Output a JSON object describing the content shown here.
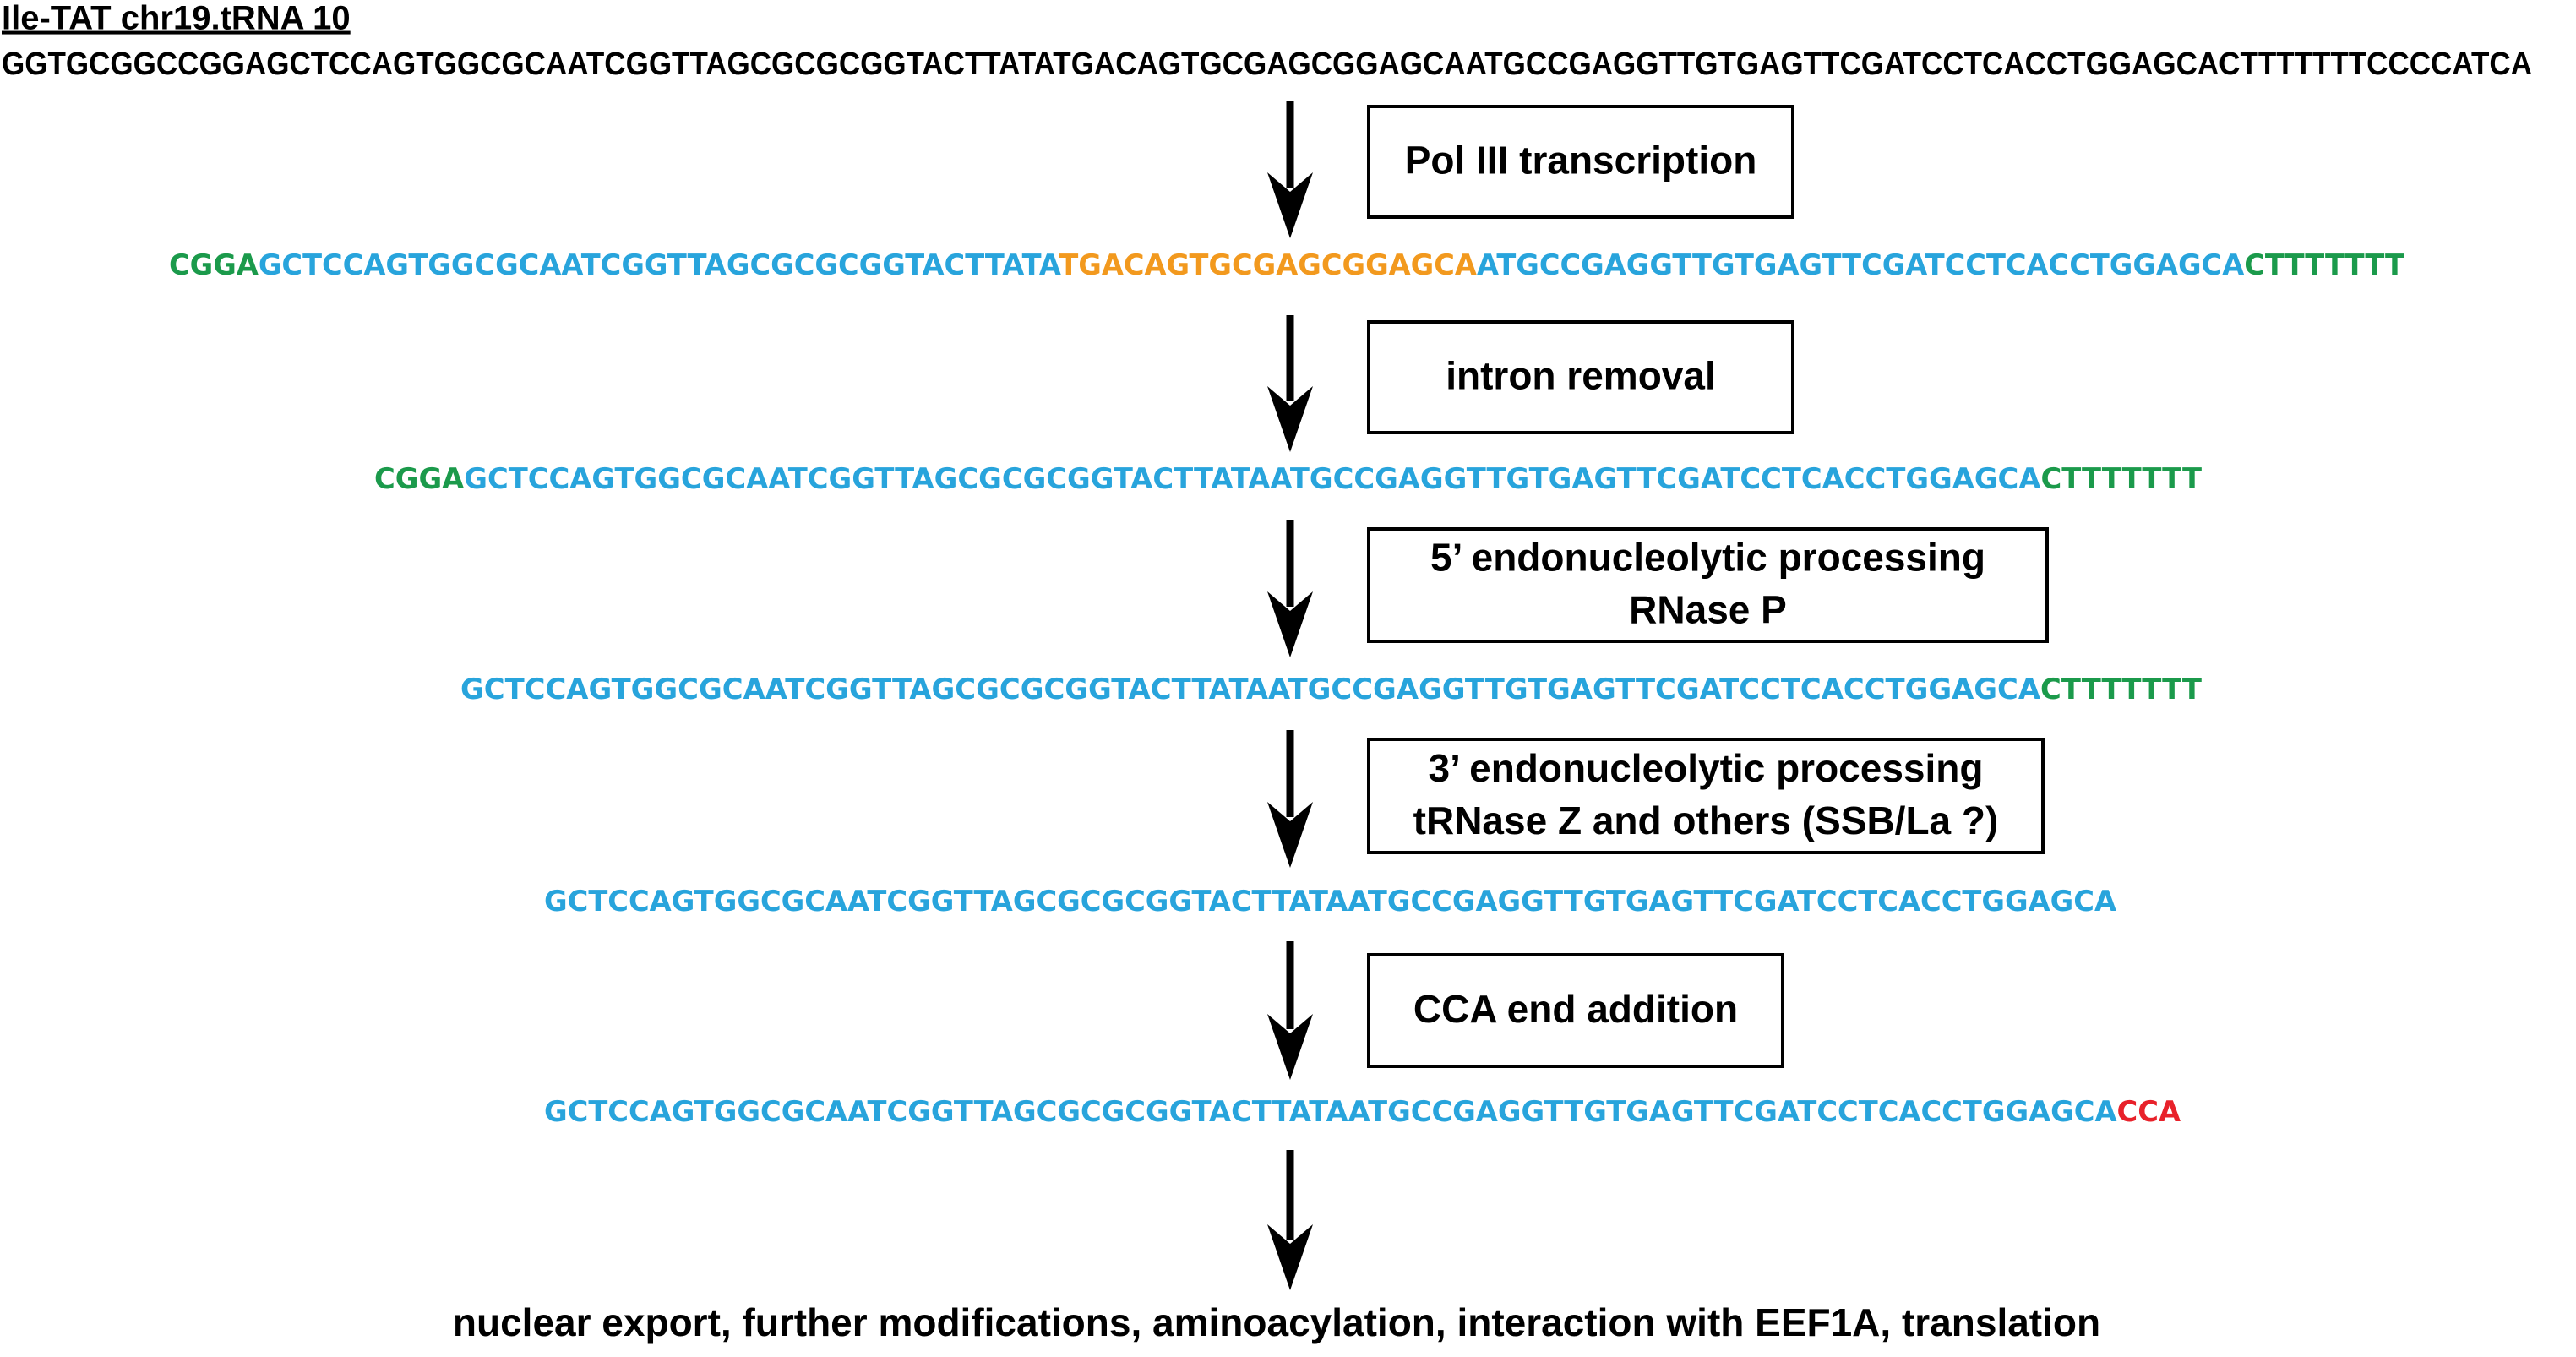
{
  "title": "Ile-TAT chr19.tRNA 10",
  "genomic_sequence": "GGTGCGGCCGGAGCTCCAGTGGCGCAATCGGTTAGCGCGCGGTACTTATATGACAGTGCGAGCGGAGCAATGCCGAGGTTGTGAGTTCGATCCTCACCTGGAGCACTTTTTTTCCCCATCA",
  "steps": [
    {
      "lines": [
        "Pol III transcription"
      ]
    },
    {
      "lines": [
        "intron removal"
      ]
    },
    {
      "lines": [
        "5’ endonucleolytic processing",
        "RNase P"
      ]
    },
    {
      "lines": [
        "3’ endonucleolytic processing",
        "tRNase Z and others (SSB/La ?)"
      ]
    },
    {
      "lines": [
        "CCA end addition"
      ]
    }
  ],
  "sequences": [
    {
      "segments": [
        {
          "text": "CGGA",
          "color": "#1b9a4b"
        },
        {
          "text": "GCTCCAGTGGCGCAATCGGTTAGCGCGCGGTACTTATA",
          "color": "#28a4dc"
        },
        {
          "text": "TGACAGTGCGAGCGGAGCA",
          "color": "#f2991e"
        },
        {
          "text": "ATGCCGAGGTTGTGAGTTCGATCCTCACCTGGAGCA",
          "color": "#28a4dc"
        },
        {
          "text": "CTTTTTTT",
          "color": "#1b9a4b"
        }
      ]
    },
    {
      "segments": [
        {
          "text": "CGGA",
          "color": "#1b9a4b"
        },
        {
          "text": "GCTCCAGTGGCGCAATCGGTTAGCGCGCGGTACTTATAATGCCGAGGTTGTGAGTTCGATCCTCACCTGGAGCA",
          "color": "#28a4dc"
        },
        {
          "text": "CTTTTTTT",
          "color": "#1b9a4b"
        }
      ]
    },
    {
      "segments": [
        {
          "text": "GCTCCAGTGGCGCAATCGGTTAGCGCGCGGTACTTATAATGCCGAGGTTGTGAGTTCGATCCTCACCTGGAGCA",
          "color": "#28a4dc"
        },
        {
          "text": "CTTTTTTT",
          "color": "#1b9a4b"
        }
      ]
    },
    {
      "segments": [
        {
          "text": "GCTCCAGTGGCGCAATCGGTTAGCGCGCGGTACTTATAATGCCGAGGTTGTGAGTTCGATCCTCACCTGGAGCA",
          "color": "#28a4dc"
        }
      ]
    },
    {
      "segments": [
        {
          "text": "GCTCCAGTGGCGCAATCGGTTAGCGCGCGGTACTTATAATGCCGAGGTTGTGAGTTCGATCCTCACCTGGAGCA",
          "color": "#28a4dc"
        },
        {
          "text": "CCA",
          "color": "#e8212a"
        }
      ]
    }
  ],
  "final": "nuclear export, further modifications, aminoacylation, interaction with EEF1A, translation"
}
